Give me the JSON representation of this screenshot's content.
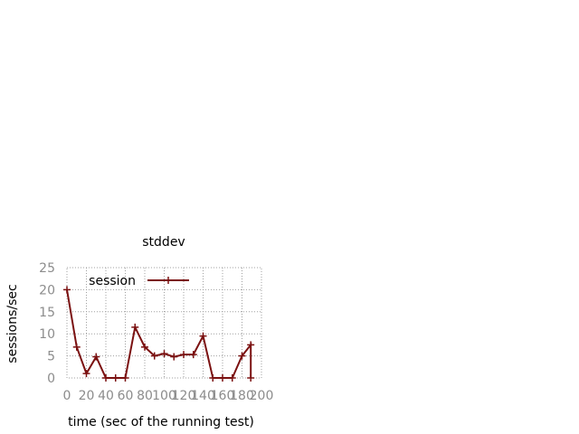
{
  "chart_data": {
    "type": "line",
    "title": "stddev",
    "xlabel": "time (sec of the running test)",
    "ylabel": "sessions/sec",
    "xlim": [
      0,
      200
    ],
    "ylim": [
      0,
      25
    ],
    "xticks": [
      0,
      20,
      40,
      60,
      80,
      100,
      120,
      140,
      160,
      180,
      200
    ],
    "yticks": [
      0,
      5,
      10,
      15,
      20,
      25
    ],
    "grid": true,
    "legend_position": "top-left",
    "series_color": "#7b1111",
    "series": [
      {
        "name": "session",
        "x": [
          0,
          10,
          20,
          30,
          40,
          50,
          60,
          70,
          80,
          90,
          100,
          110,
          120,
          130,
          140,
          150,
          160,
          170,
          180,
          189,
          189
        ],
        "y": [
          20,
          7,
          1,
          4.8,
          0,
          0,
          0,
          11.5,
          7,
          5,
          5.5,
          4.8,
          5.3,
          5.3,
          9.5,
          0,
          0,
          0,
          5,
          7.5,
          0
        ]
      }
    ]
  }
}
